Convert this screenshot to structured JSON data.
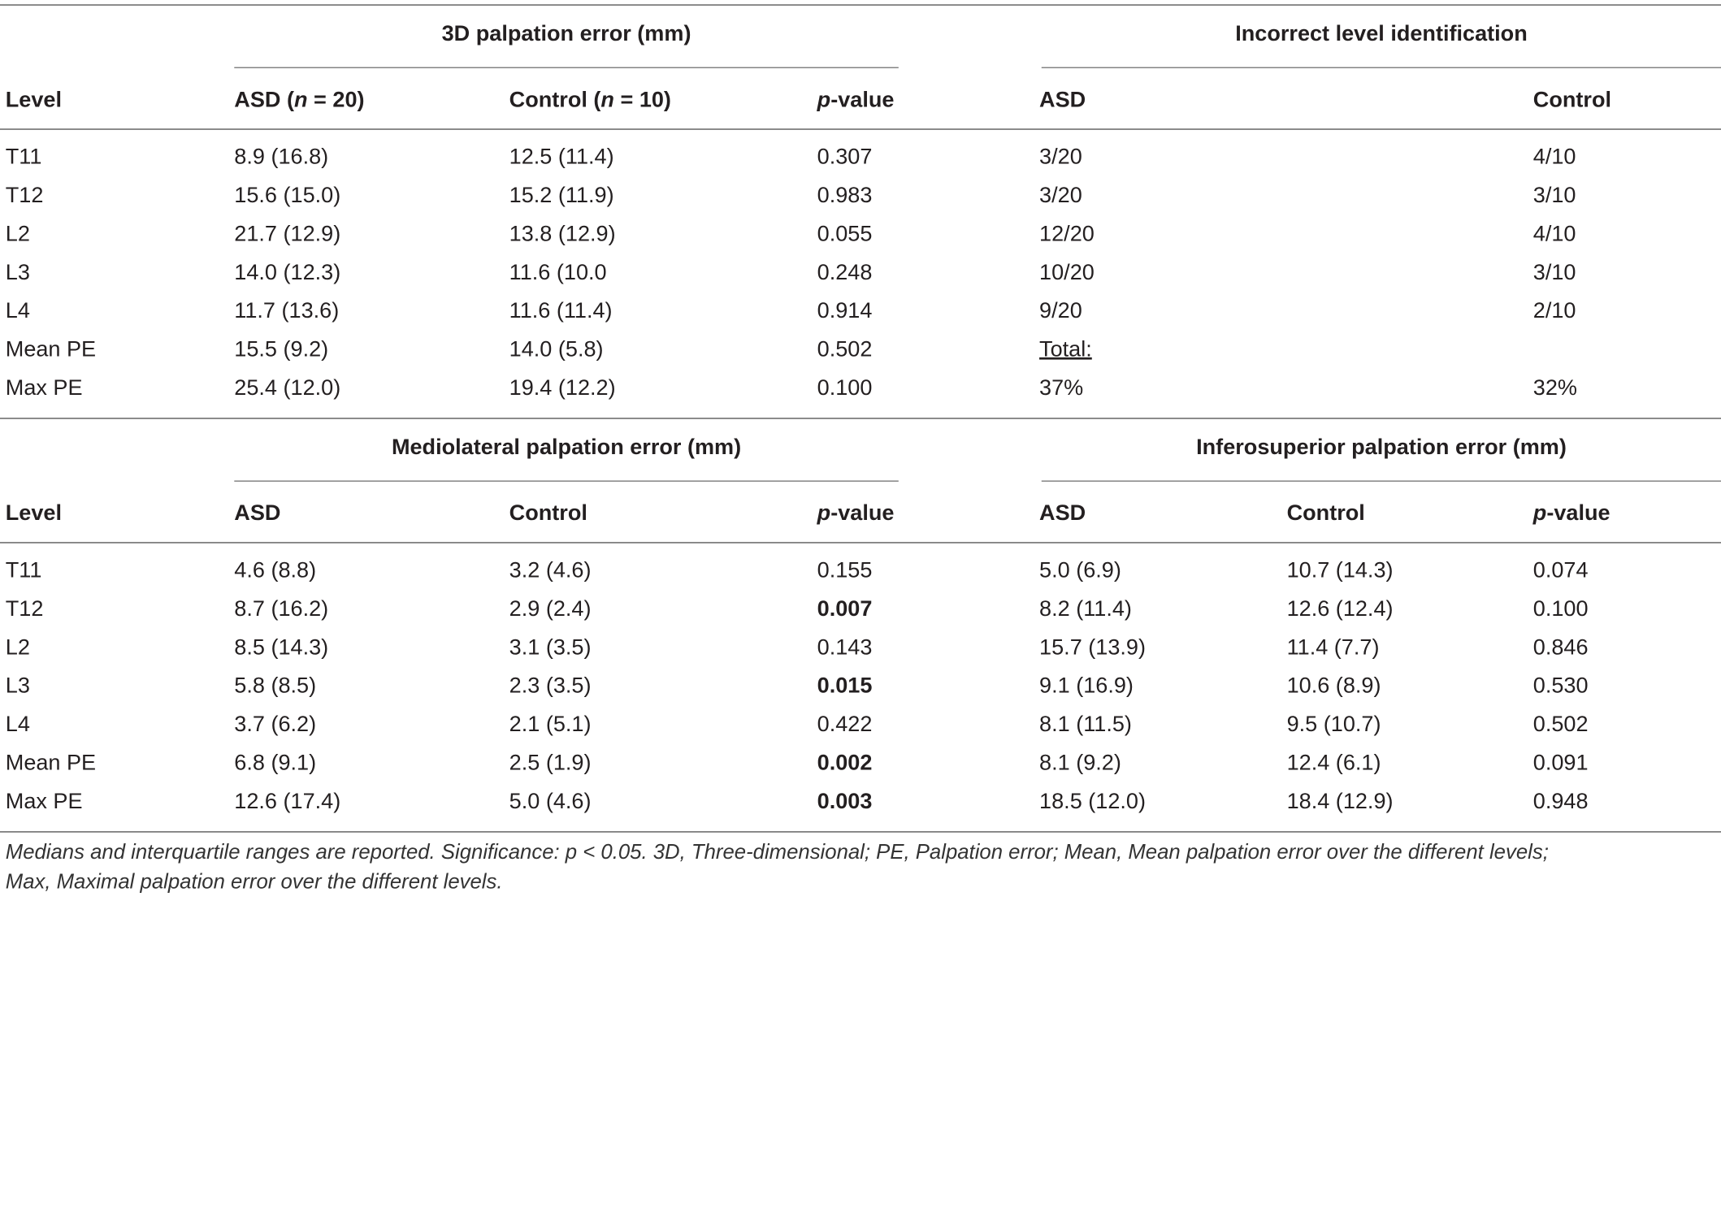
{
  "top": {
    "group_left_title": "3D palpation error (mm)",
    "group_right_title": "Incorrect level identification",
    "header": {
      "level": "Level",
      "asd": "ASD (n = 20)",
      "control": "Control (n = 10)",
      "p_value": "p-value",
      "asd_inc": "ASD",
      "control_inc": "Control"
    },
    "rows": [
      {
        "level": "T11",
        "asd": "8.9 (16.8)",
        "control": "12.5 (11.4)",
        "p": "0.307",
        "asd_inc": "3/20",
        "control_inc": "4/10"
      },
      {
        "level": "T12",
        "asd": "15.6 (15.0)",
        "control": "15.2 (11.9)",
        "p": "0.983",
        "asd_inc": "3/20",
        "control_inc": "3/10"
      },
      {
        "level": "L2",
        "asd": "21.7 (12.9)",
        "control": "13.8 (12.9)",
        "p": "0.055",
        "asd_inc": "12/20",
        "control_inc": "4/10"
      },
      {
        "level": "L3",
        "asd": "14.0 (12.3)",
        "control": "11.6 (10.0",
        "p": "0.248",
        "asd_inc": "10/20",
        "control_inc": "3/10"
      },
      {
        "level": "L4",
        "asd": "11.7 (13.6)",
        "control": "11.6 (11.4)",
        "p": "0.914",
        "asd_inc": "9/20",
        "control_inc": "2/10"
      },
      {
        "level": "Mean PE",
        "asd": "15.5 (9.2)",
        "control": "14.0 (5.8)",
        "p": "0.502",
        "asd_inc": "Total:",
        "control_inc": ""
      },
      {
        "level": "Max PE",
        "asd": "25.4 (12.0)",
        "control": "19.4 (12.2)",
        "p": "0.100",
        "asd_inc": "37%",
        "control_inc": "32%"
      }
    ]
  },
  "bottom": {
    "group_left_title": "Mediolateral palpation error (mm)",
    "group_right_title": "Inferosuperior palpation error (mm)",
    "header": {
      "level": "Level",
      "asd": "ASD",
      "control": "Control",
      "p_value": "p-value",
      "asd_is": "ASD",
      "control_is": "Control",
      "p_value_is": "p-value"
    },
    "rows": [
      {
        "level": "T11",
        "asd": "4.6 (8.8)",
        "control": "3.2 (4.6)",
        "p": "0.155",
        "p_sig": false,
        "asd_is": "5.0 (6.9)",
        "control_is": "10.7 (14.3)",
        "p_is": "0.074"
      },
      {
        "level": "T12",
        "asd": "8.7 (16.2)",
        "control": "2.9 (2.4)",
        "p": "0.007",
        "p_sig": true,
        "asd_is": "8.2 (11.4)",
        "control_is": "12.6 (12.4)",
        "p_is": "0.100"
      },
      {
        "level": "L2",
        "asd": "8.5 (14.3)",
        "control": "3.1 (3.5)",
        "p": "0.143",
        "p_sig": false,
        "asd_is": "15.7 (13.9)",
        "control_is": "11.4 (7.7)",
        "p_is": "0.846"
      },
      {
        "level": "L3",
        "asd": "5.8 (8.5)",
        "control": "2.3 (3.5)",
        "p": "0.015",
        "p_sig": true,
        "asd_is": "9.1 (16.9)",
        "control_is": "10.6 (8.9)",
        "p_is": "0.530"
      },
      {
        "level": "L4",
        "asd": "3.7 (6.2)",
        "control": "2.1 (5.1)",
        "p": "0.422",
        "p_sig": false,
        "asd_is": "8.1 (11.5)",
        "control_is": "9.5 (10.7)",
        "p_is": "0.502"
      },
      {
        "level": "Mean PE",
        "asd": "6.8 (9.1)",
        "control": "2.5 (1.9)",
        "p": "0.002",
        "p_sig": true,
        "asd_is": "8.1 (9.2)",
        "control_is": "12.4 (6.1)",
        "p_is": "0.091"
      },
      {
        "level": "Max PE",
        "asd": "12.6 (17.4)",
        "control": "5.0 (4.6)",
        "p": "0.003",
        "p_sig": true,
        "asd_is": "18.5 (12.0)",
        "control_is": "18.4 (12.9)",
        "p_is": "0.948"
      }
    ]
  },
  "footnote": {
    "line1": "Medians and interquartile ranges are reported. Significance: p < 0.05. 3D, Three-dimensional; PE, Palpation error; Mean, Mean palpation error over the different levels;",
    "line2": "Max, Maximal palpation error over the different levels."
  }
}
